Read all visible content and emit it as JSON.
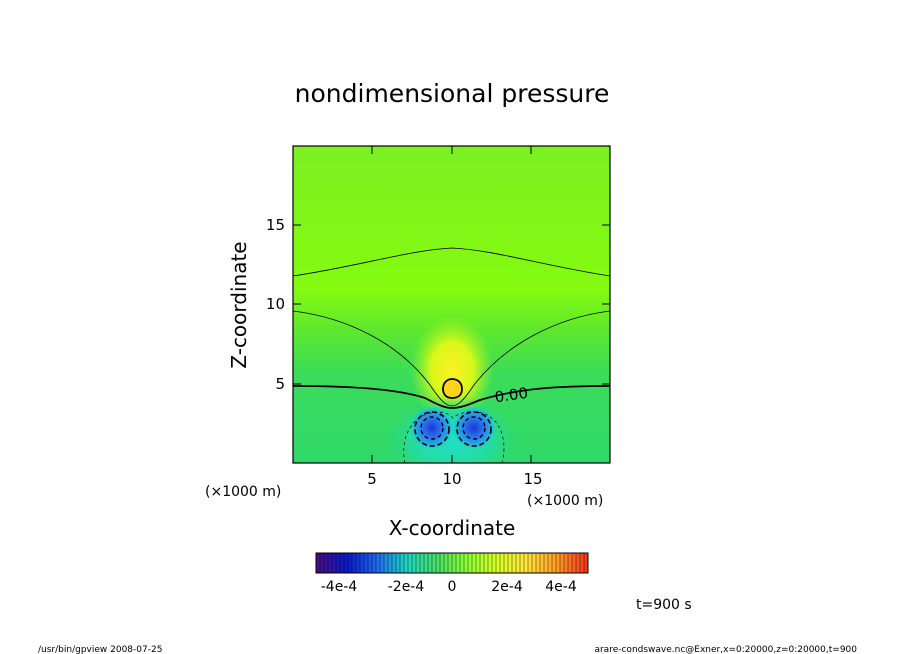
{
  "chart_data": {
    "type": "heatmap",
    "title": "nondimensional pressure",
    "xlabel": "X-coordinate",
    "ylabel": "Z-coordinate",
    "x_unit": "(×1000 m)",
    "y_unit": "(×1000 m)",
    "xlim": [
      0,
      20
    ],
    "ylim": [
      0,
      20
    ],
    "x_ticks": [
      "5",
      "10",
      "15"
    ],
    "y_ticks": [
      "5",
      "10",
      "15"
    ],
    "contour_label": "0.00",
    "time_label": "t=900 s",
    "colorbar": {
      "range": [
        -0.0005,
        0.0005
      ],
      "tick_labels": [
        "-4e-4",
        "-2e-4",
        "0",
        "2e-4",
        "4e-4"
      ],
      "colors": [
        "#4b0a86",
        "#0a1acc",
        "#1f6cf2",
        "#1fd6c4",
        "#47e066",
        "#8bff33",
        "#d6ff26",
        "#ffe63a",
        "#ff9e24",
        "#f23a1a"
      ]
    },
    "features": {
      "positive_center": {
        "x": 10,
        "z": 4.6
      },
      "negative_centers": [
        {
          "x": 8.6,
          "z": 2.2
        },
        {
          "x": 11.3,
          "z": 2.2
        }
      ]
    }
  },
  "footer": {
    "left": "/usr/bin/gpview   2008-07-25",
    "right": "arare-condswave.nc@Exner,x=0:20000,z=0:20000,t=900"
  }
}
